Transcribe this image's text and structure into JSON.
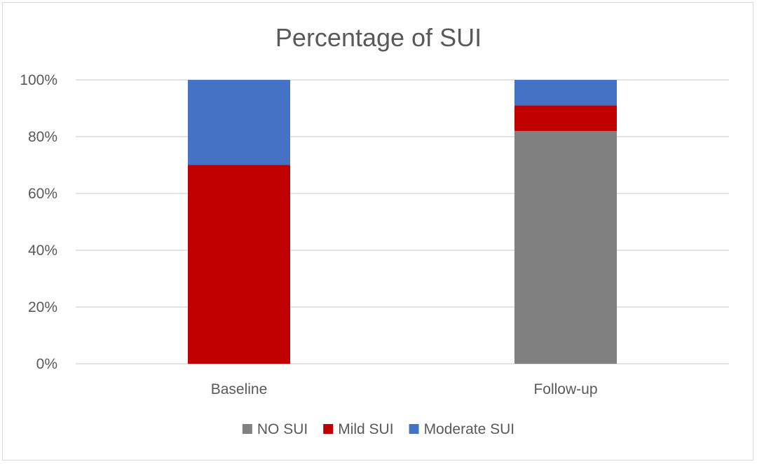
{
  "chart_data": {
    "type": "bar",
    "stacked": true,
    "title": "Percentage of SUI",
    "xlabel": "",
    "ylabel": "",
    "categories": [
      "Baseline",
      "Follow-up"
    ],
    "ylim": [
      0,
      100
    ],
    "yticks": [
      0,
      20,
      40,
      60,
      80,
      100
    ],
    "ytick_labels": [
      "0%",
      "20%",
      "40%",
      "60%",
      "80%",
      "100%"
    ],
    "grid": true,
    "legend_position": "bottom",
    "series": [
      {
        "name": "NO SUI",
        "color": "#808080",
        "values": [
          0,
          82
        ]
      },
      {
        "name": "Mild SUI",
        "color": "#c00000",
        "values": [
          70,
          9
        ]
      },
      {
        "name": "Moderate SUI",
        "color": "#4472c4",
        "values": [
          30,
          9
        ]
      }
    ]
  }
}
